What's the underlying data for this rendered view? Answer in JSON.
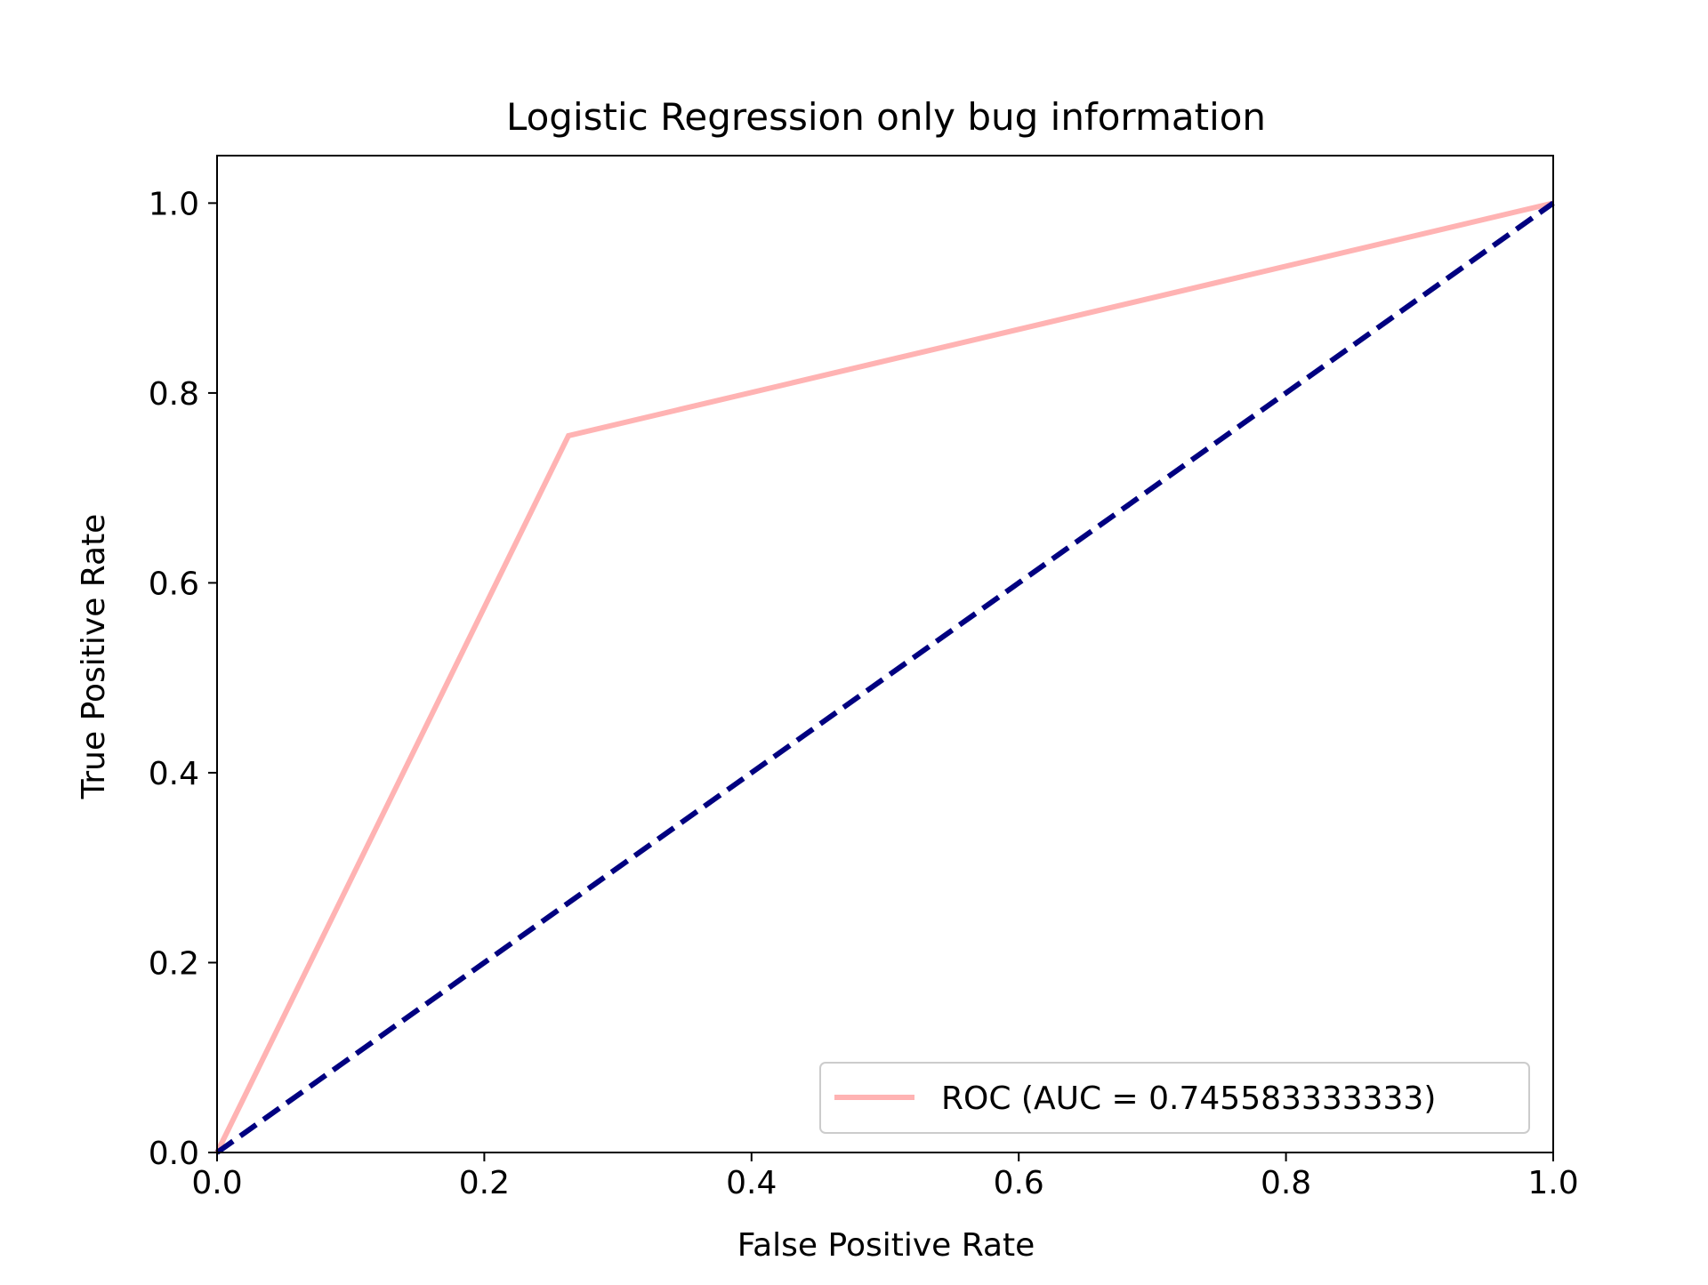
{
  "chart_data": {
    "type": "line",
    "title": "Logistic Regression only bug information",
    "xlabel": "False Positive Rate",
    "ylabel": "True Positive Rate",
    "xlim": [
      0.0,
      1.0
    ],
    "ylim": [
      0.0,
      1.05
    ],
    "x_ticks": [
      0.0,
      0.2,
      0.4,
      0.6,
      0.8,
      1.0
    ],
    "x_tick_labels": [
      "0.0",
      "0.2",
      "0.4",
      "0.6",
      "0.8",
      "1.0"
    ],
    "y_ticks": [
      0.0,
      0.2,
      0.4,
      0.6,
      0.8,
      1.0
    ],
    "y_tick_labels": [
      "0.0",
      "0.2",
      "0.4",
      "0.6",
      "0.8",
      "1.0"
    ],
    "grid": false,
    "legend_position": "lower right",
    "series": [
      {
        "name": "ROC (AUC = 0.745583333333)",
        "color": "#ffb3b3",
        "line_style": "solid",
        "x": [
          0.0,
          0.263,
          1.0
        ],
        "y": [
          0.0,
          0.755,
          1.0
        ]
      },
      {
        "color": "#000080",
        "line_style": "dashed",
        "x": [
          0.0,
          1.0
        ],
        "y": [
          0.0,
          1.0
        ]
      }
    ]
  }
}
